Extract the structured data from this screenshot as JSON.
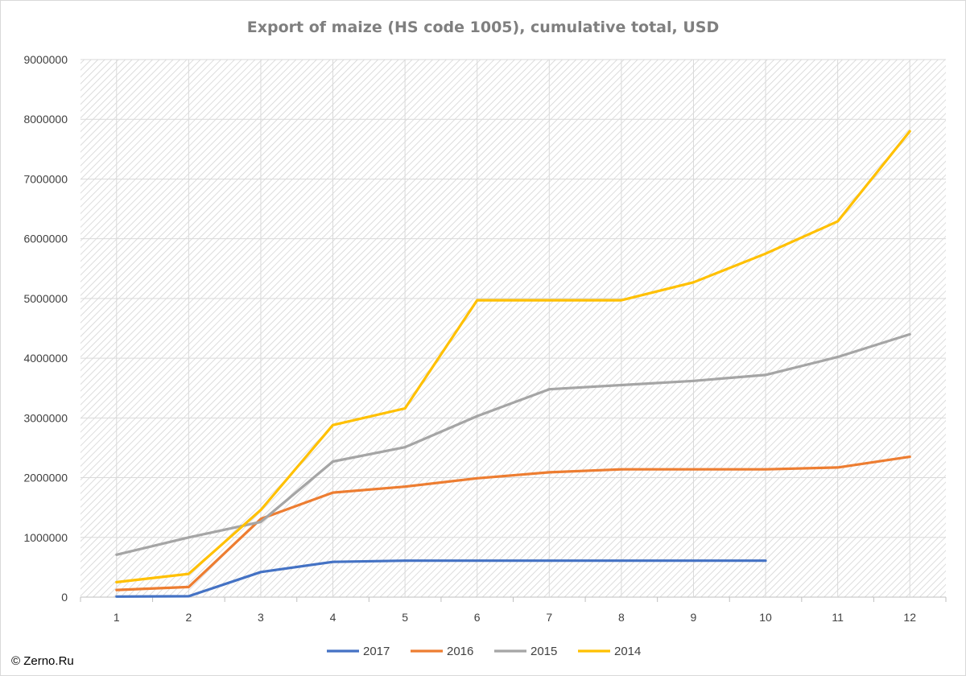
{
  "chart_data": {
    "type": "line",
    "title": "Export of maize (HS code 1005), cumulative total, USD",
    "xlabel": "",
    "ylabel": "",
    "x": [
      1,
      2,
      3,
      4,
      5,
      6,
      7,
      8,
      9,
      10,
      11,
      12
    ],
    "ylim": [
      0,
      9000000
    ],
    "yticks": [
      0,
      1000000,
      2000000,
      3000000,
      4000000,
      5000000,
      6000000,
      7000000,
      8000000,
      9000000
    ],
    "grid": true,
    "legend_position": "bottom",
    "series": [
      {
        "name": "2017",
        "color": "#4472c4",
        "values": [
          10000,
          15000,
          420000,
          590000,
          610000,
          610000,
          610000,
          610000,
          610000,
          610000,
          null,
          null
        ]
      },
      {
        "name": "2016",
        "color": "#ed7d31",
        "values": [
          120000,
          170000,
          1310000,
          1750000,
          1850000,
          1990000,
          2090000,
          2140000,
          2140000,
          2140000,
          2170000,
          2350000
        ]
      },
      {
        "name": "2015",
        "color": "#a5a5a5",
        "values": [
          710000,
          1000000,
          1260000,
          2270000,
          2510000,
          3030000,
          3480000,
          3550000,
          3620000,
          3720000,
          4020000,
          4400000
        ]
      },
      {
        "name": "2014",
        "color": "#ffc000",
        "values": [
          250000,
          390000,
          1460000,
          2880000,
          3160000,
          4970000,
          4970000,
          4970000,
          5270000,
          5750000,
          6290000,
          7800000
        ]
      }
    ]
  },
  "copyright": "© Zerno.Ru"
}
